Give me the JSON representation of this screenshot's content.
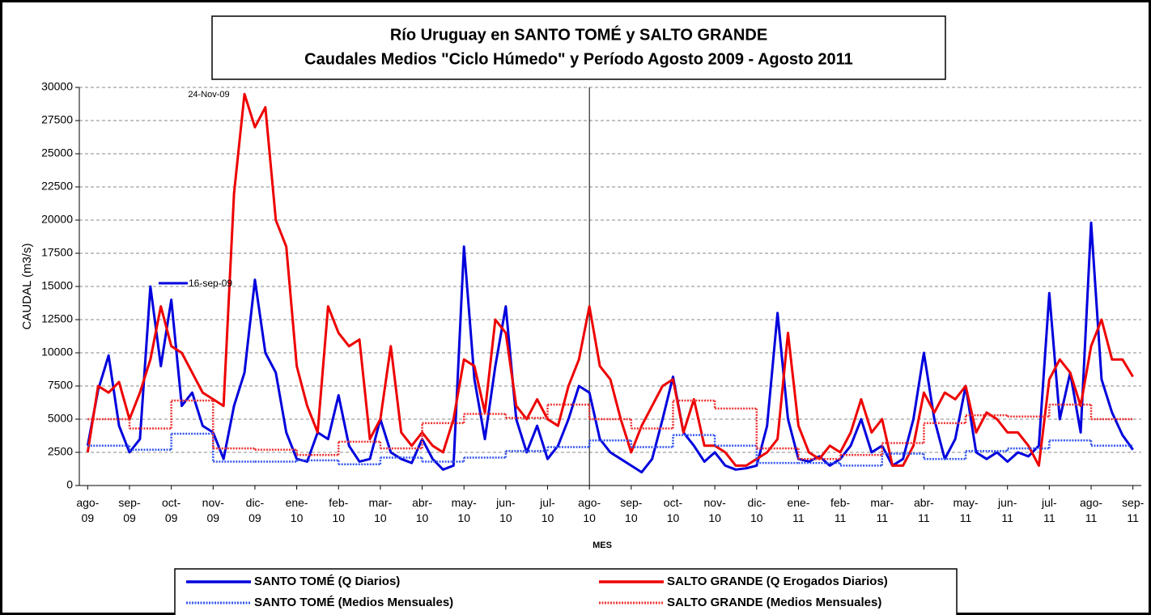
{
  "chart_data": {
    "type": "line",
    "title": "Río Uruguay en SANTO TOMÉ y SALTO GRANDE",
    "subtitle": "Caudales Medios \"Ciclo Húmedo\" y Período Agosto 2009 - Agosto 2011",
    "y_label": "CAUDAL (m3/s)",
    "x_label": "MES",
    "annotations": [
      "24-Nov-09",
      "16-sep-09"
    ],
    "ylim": [
      0,
      30000
    ],
    "yticks": [
      0,
      2500,
      5000,
      7500,
      10000,
      12500,
      15000,
      17500,
      20000,
      22500,
      25000,
      27500,
      30000
    ],
    "xlim": [
      -0.2,
      25.2
    ],
    "xticks": [
      {
        "value": 0,
        "label": "ago-09"
      },
      {
        "value": 1,
        "label": "sep-09"
      },
      {
        "value": 2,
        "label": "oct-09"
      },
      {
        "value": 3,
        "label": "nov-09"
      },
      {
        "value": 4,
        "label": "dic-09"
      },
      {
        "value": 5,
        "label": "ene-10"
      },
      {
        "value": 6,
        "label": "feb-10"
      },
      {
        "value": 7,
        "label": "mar-10"
      },
      {
        "value": 8,
        "label": "abr-10"
      },
      {
        "value": 9,
        "label": "may-10"
      },
      {
        "value": 10,
        "label": "jun-10"
      },
      {
        "value": 11,
        "label": "jul-10"
      },
      {
        "value": 12,
        "label": "ago-10"
      },
      {
        "value": 13,
        "label": "sep-10"
      },
      {
        "value": 14,
        "label": "oct-10"
      },
      {
        "value": 15,
        "label": "nov-10"
      },
      {
        "value": 16,
        "label": "dic-10"
      },
      {
        "value": 17,
        "label": "ene-11"
      },
      {
        "value": 18,
        "label": "feb-11"
      },
      {
        "value": 19,
        "label": "mar-11"
      },
      {
        "value": 20,
        "label": "abr-11"
      },
      {
        "value": 21,
        "label": "may-11"
      },
      {
        "value": 22,
        "label": "jun-11"
      },
      {
        "value": 23,
        "label": "jul-11"
      },
      {
        "value": 24,
        "label": "ago-11"
      },
      {
        "value": 25,
        "label": "sep-11"
      }
    ],
    "vline": 12,
    "grid": true,
    "series": [
      {
        "name": "SANTO TOMÉ (Q Diarios)",
        "color": "#0000dd",
        "step": false,
        "x": [
          0,
          0.25,
          0.5,
          0.75,
          1,
          1.25,
          1.5,
          1.75,
          2,
          2.25,
          2.5,
          2.75,
          3,
          3.25,
          3.5,
          3.75,
          4,
          4.25,
          4.5,
          4.75,
          5,
          5.25,
          5.5,
          5.75,
          6,
          6.25,
          6.5,
          6.75,
          7,
          7.25,
          7.5,
          7.75,
          8,
          8.25,
          8.5,
          8.75,
          9,
          9.25,
          9.5,
          9.75,
          10,
          10.25,
          10.5,
          10.75,
          11,
          11.25,
          11.5,
          11.75,
          12,
          12.25,
          12.5,
          12.75,
          13,
          13.25,
          13.5,
          13.75,
          14,
          14.25,
          14.5,
          14.75,
          15,
          15.25,
          15.5,
          15.75,
          16,
          16.25,
          16.5,
          16.75,
          17,
          17.25,
          17.5,
          17.75,
          18,
          18.25,
          18.5,
          18.75,
          19,
          19.25,
          19.5,
          19.75,
          20,
          20.25,
          20.5,
          20.75,
          21,
          21.25,
          21.5,
          21.75,
          22,
          22.25,
          22.5,
          22.75,
          23,
          23.25,
          23.5,
          23.75,
          24,
          24.25,
          24.5,
          24.75,
          25
        ],
        "values": [
          3000,
          7200,
          9800,
          4500,
          2500,
          3500,
          15000,
          9000,
          14000,
          6000,
          7000,
          4500,
          4000,
          2000,
          6000,
          8500,
          15500,
          10000,
          8500,
          4000,
          2000,
          1800,
          4000,
          3500,
          6800,
          3000,
          1800,
          2000,
          5000,
          2500,
          2000,
          1700,
          3500,
          2000,
          1200,
          1500,
          18000,
          8000,
          3500,
          9000,
          13500,
          5000,
          2500,
          4500,
          2000,
          3000,
          5000,
          7500,
          7000,
          3500,
          2500,
          2000,
          1500,
          1000,
          2000,
          5000,
          8200,
          4000,
          3000,
          1800,
          2500,
          1500,
          1200,
          1300,
          1500,
          4500,
          13000,
          5000,
          2000,
          1800,
          2200,
          1500,
          2000,
          3000,
          5000,
          2500,
          3000,
          1500,
          2000,
          5000,
          10000,
          5000,
          2000,
          3500,
          7500,
          2500,
          2000,
          2500,
          1800,
          2500,
          2200,
          3000,
          14500,
          5000,
          8500,
          4000,
          19800,
          8000,
          5500,
          3800,
          2700
        ]
      },
      {
        "name": "SALTO GRANDE (Q Erogados Diarios)",
        "color": "#ee0000",
        "step": false,
        "x": [
          0,
          0.25,
          0.5,
          0.75,
          1,
          1.25,
          1.5,
          1.75,
          2,
          2.25,
          2.5,
          2.75,
          3,
          3.25,
          3.5,
          3.75,
          4,
          4.25,
          4.5,
          4.75,
          5,
          5.25,
          5.5,
          5.75,
          6,
          6.25,
          6.5,
          6.75,
          7,
          7.25,
          7.5,
          7.75,
          8,
          8.25,
          8.5,
          8.75,
          9,
          9.25,
          9.5,
          9.75,
          10,
          10.25,
          10.5,
          10.75,
          11,
          11.25,
          11.5,
          11.75,
          12,
          12.25,
          12.5,
          12.75,
          13,
          13.25,
          13.5,
          13.75,
          14,
          14.25,
          14.5,
          14.75,
          15,
          15.25,
          15.5,
          15.75,
          16,
          16.25,
          16.5,
          16.75,
          17,
          17.25,
          17.5,
          17.75,
          18,
          18.25,
          18.5,
          18.75,
          19,
          19.25,
          19.5,
          19.75,
          20,
          20.25,
          20.5,
          20.75,
          21,
          21.25,
          21.5,
          21.75,
          22,
          22.25,
          22.5,
          22.75,
          23,
          23.25,
          23.5,
          23.75,
          24,
          24.25,
          24.5,
          24.75,
          25
        ],
        "values": [
          2500,
          7500,
          7000,
          7800,
          5000,
          7000,
          9500,
          13500,
          10500,
          10000,
          8500,
          7000,
          6500,
          6000,
          22000,
          29500,
          27000,
          28500,
          20000,
          18000,
          9000,
          6000,
          4000,
          13500,
          11500,
          10500,
          11000,
          3500,
          5000,
          10500,
          4000,
          3000,
          4000,
          3000,
          2500,
          5000,
          9500,
          9000,
          5500,
          12500,
          11500,
          6000,
          5000,
          6500,
          5000,
          4500,
          7500,
          9500,
          13500,
          9000,
          8000,
          5000,
          2500,
          4500,
          6000,
          7500,
          8000,
          4000,
          6500,
          3000,
          3000,
          2500,
          1500,
          1500,
          2000,
          2500,
          3500,
          11500,
          4500,
          2500,
          2000,
          3000,
          2500,
          4000,
          6500,
          4000,
          5000,
          1500,
          1500,
          3000,
          7000,
          5500,
          7000,
          6500,
          7500,
          4000,
          5500,
          5000,
          4000,
          4000,
          3000,
          1500,
          8000,
          9500,
          8500,
          6000,
          10500,
          12500,
          9500,
          9500,
          8200
        ]
      },
      {
        "name": "SANTO TOMÉ (Medios Mensuales)",
        "color": "#3355ee",
        "step": true,
        "x": [
          0,
          1,
          2,
          3,
          4,
          5,
          6,
          7,
          8,
          9,
          10,
          11,
          12,
          13,
          14,
          15,
          16,
          17,
          18,
          19,
          20,
          21,
          22,
          23,
          24
        ],
        "values": [
          3000,
          2700,
          3900,
          1800,
          1800,
          1900,
          1600,
          2100,
          1800,
          2100,
          2600,
          2900,
          3400,
          2900,
          3800,
          3000,
          1700,
          1700,
          1500,
          2400,
          2000,
          2600,
          2800,
          3400,
          3000
        ]
      },
      {
        "name": "SALTO GRANDE (Medios Mensuales)",
        "color": "#ee3333",
        "step": true,
        "x": [
          0,
          1,
          2,
          3,
          4,
          5,
          6,
          7,
          8,
          9,
          10,
          11,
          12,
          13,
          14,
          15,
          16,
          17,
          18,
          19,
          20,
          21,
          22,
          23,
          24
        ],
        "values": [
          5000,
          4300,
          6400,
          2800,
          2700,
          2300,
          3300,
          2800,
          4700,
          5400,
          5100,
          6100,
          5000,
          4300,
          6400,
          5800,
          2800,
          2000,
          2300,
          3200,
          4700,
          5300,
          5200,
          6100,
          5000
        ]
      }
    ]
  }
}
